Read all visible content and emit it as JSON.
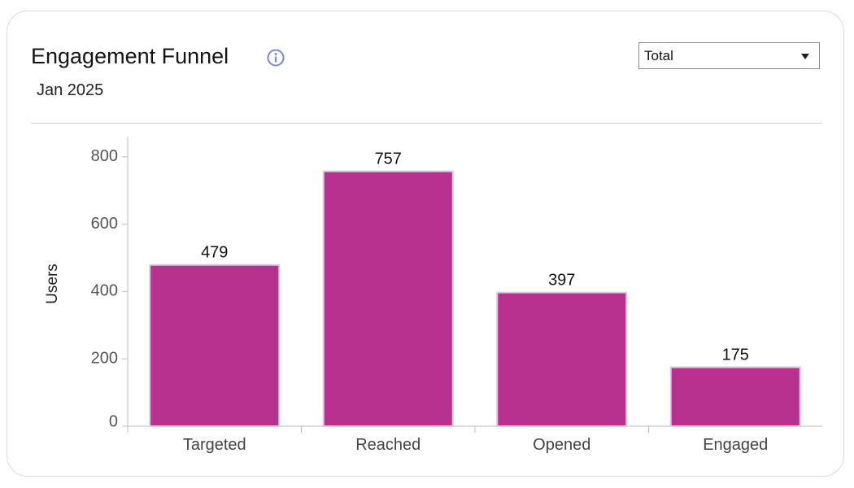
{
  "header": {
    "title": "Engagement Funnel",
    "subtitle": "Jan 2025",
    "info_icon": "info-circle-icon"
  },
  "filter": {
    "selected": "Total",
    "arrow_icon": "caret-down-icon"
  },
  "chart_data": {
    "type": "bar",
    "categories": [
      "Targeted",
      "Reached",
      "Opened",
      "Engaged"
    ],
    "values": [
      479,
      757,
      397,
      175
    ],
    "ylabel": "Users",
    "xlabel": "",
    "ylim": [
      0,
      860
    ],
    "yticks": [
      0,
      200,
      400,
      600,
      800
    ],
    "grid": false,
    "bar_color": "#b8318f",
    "bar_border_color": "#d6cce0",
    "show_data_labels": true
  }
}
